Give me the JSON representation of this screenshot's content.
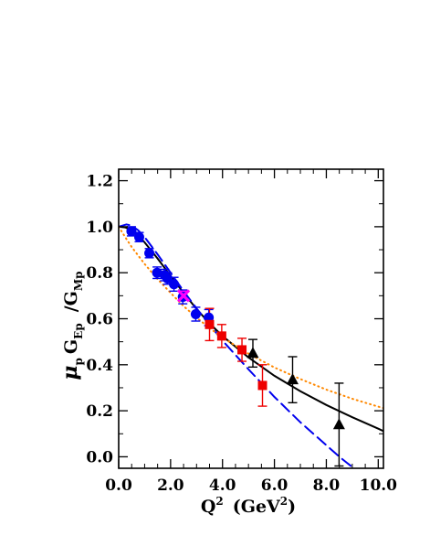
{
  "chart_data": {
    "type": "scatter",
    "title": "",
    "xlabel": {
      "base": "Q",
      "sup": "2",
      "unit_open": "(GeV",
      "unit_sup": "2",
      "unit_close": ")"
    },
    "ylabel": {
      "mu": "μ",
      "mu_sub": "p",
      "g1": "G",
      "g1_sub": "Ep",
      "slash": "/G",
      "g2_sub": "Mp"
    },
    "xlim": [
      0,
      10.2
    ],
    "ylim": [
      -0.05,
      1.25
    ],
    "xticks": [
      0,
      2,
      4,
      6,
      8,
      10
    ],
    "xtick_labels": [
      "0.0",
      "2.0",
      "4.0",
      "6.0",
      "8.0",
      "10.0"
    ],
    "yticks": [
      0,
      0.2,
      0.4,
      0.6,
      0.8,
      1.0,
      1.2
    ],
    "ytick_labels": [
      "0.0",
      "0.2",
      "0.4",
      "0.6",
      "0.8",
      "1.0",
      "1.2"
    ],
    "grid": false,
    "series": [
      {
        "marker": "circle",
        "color": "#0000ee",
        "x": [
          0.49,
          0.79,
          1.18,
          1.48,
          1.77,
          1.88,
          2.13,
          2.47,
          2.97,
          3.47
        ],
        "y": [
          0.98,
          0.955,
          0.885,
          0.8,
          0.79,
          0.775,
          0.75,
          0.695,
          0.62,
          0.605
        ],
        "err": [
          0.02,
          0.02,
          0.02,
          0.025,
          0.025,
          0.025,
          0.03,
          0.03,
          0.03,
          0.035
        ]
      },
      {
        "marker": "x",
        "color": "#ff00ff",
        "x": [
          2.5
        ],
        "y": [
          0.7
        ],
        "err": [
          0.02
        ]
      },
      {
        "marker": "square",
        "color": "#ee0000",
        "x": [
          3.5,
          3.97,
          4.75,
          5.54
        ],
        "y": [
          0.575,
          0.525,
          0.465,
          0.31
        ],
        "err": [
          0.07,
          0.05,
          0.05,
          0.09
        ]
      },
      {
        "marker": "triangle",
        "color": "#000000",
        "x": [
          5.17,
          6.7,
          8.49
        ],
        "y": [
          0.45,
          0.335,
          0.14
        ],
        "err": [
          0.06,
          0.1,
          0.18
        ]
      }
    ],
    "curves": [
      {
        "style": "solid",
        "color": "#000000",
        "x": [
          0.0,
          0.25,
          0.5,
          0.75,
          1.0,
          1.5,
          2.0,
          2.5,
          3.0,
          3.5,
          4.0,
          5.0,
          6.0,
          7.0,
          8.0,
          9.0,
          10.0,
          10.2
        ],
        "y": [
          1.0,
          0.997,
          0.985,
          0.962,
          0.932,
          0.862,
          0.786,
          0.712,
          0.642,
          0.58,
          0.525,
          0.432,
          0.352,
          0.285,
          0.225,
          0.172,
          0.122,
          0.112
        ]
      },
      {
        "style": "dashed",
        "color": "#0000ee",
        "x": [
          0.0,
          0.3,
          0.5,
          0.75,
          1.0,
          1.5,
          2.0,
          2.5,
          3.0,
          3.5,
          4.0,
          5.0,
          6.0,
          7.0,
          8.0,
          8.5,
          9.0,
          9.3
        ],
        "y": [
          1.0,
          1.01,
          1.005,
          0.985,
          0.955,
          0.88,
          0.8,
          0.72,
          0.645,
          0.575,
          0.505,
          0.38,
          0.26,
          0.15,
          0.05,
          0.0,
          -0.045,
          -0.07
        ]
      },
      {
        "style": "dotted",
        "color": "#ff8800",
        "x": [
          0.0,
          0.25,
          0.5,
          1.0,
          1.5,
          2.0,
          2.5,
          3.0,
          3.5,
          4.0,
          5.0,
          6.0,
          7.0,
          8.0,
          9.0,
          10.0,
          10.2
        ],
        "y": [
          1.0,
          0.955,
          0.912,
          0.838,
          0.772,
          0.712,
          0.655,
          0.605,
          0.56,
          0.518,
          0.448,
          0.388,
          0.338,
          0.292,
          0.252,
          0.218,
          0.212
        ]
      }
    ]
  }
}
